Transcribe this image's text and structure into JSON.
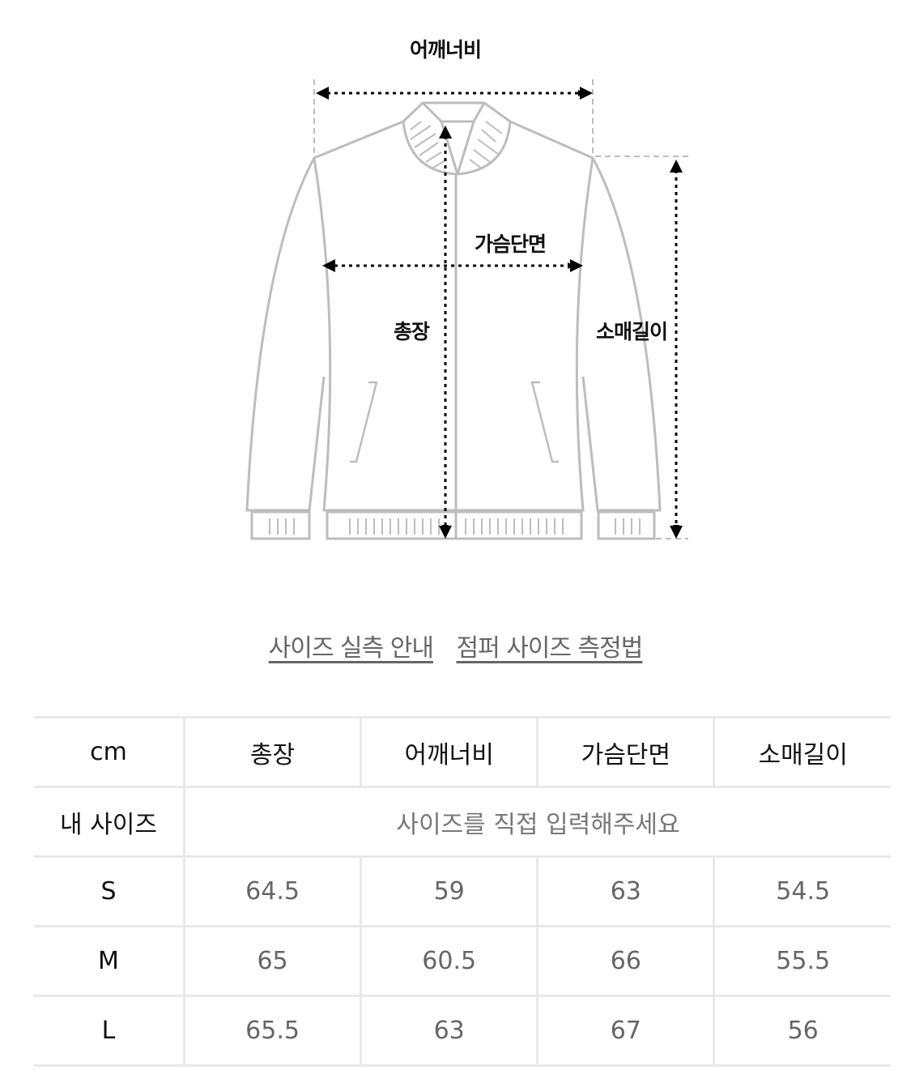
{
  "diagram": {
    "labels": {
      "shoulder": "어깨너비",
      "chest": "가슴단면",
      "total_length": "총장",
      "sleeve": "소매길이"
    }
  },
  "links": {
    "size_guide": "사이즈 실측 안내",
    "measure_method": "점퍼 사이즈 측정법"
  },
  "table": {
    "headers": [
      "cm",
      "총장",
      "어깨너비",
      "가슴단면",
      "소매길이"
    ],
    "my_size": {
      "label": "내 사이즈",
      "placeholder": "사이즈를 직접 입력해주세요"
    },
    "rows": [
      {
        "size": "S",
        "values": [
          "64.5",
          "59",
          "63",
          "54.5"
        ]
      },
      {
        "size": "M",
        "values": [
          "65",
          "60.5",
          "66",
          "55.5"
        ]
      },
      {
        "size": "L",
        "values": [
          "65.5",
          "63",
          "67",
          "56"
        ]
      }
    ]
  }
}
